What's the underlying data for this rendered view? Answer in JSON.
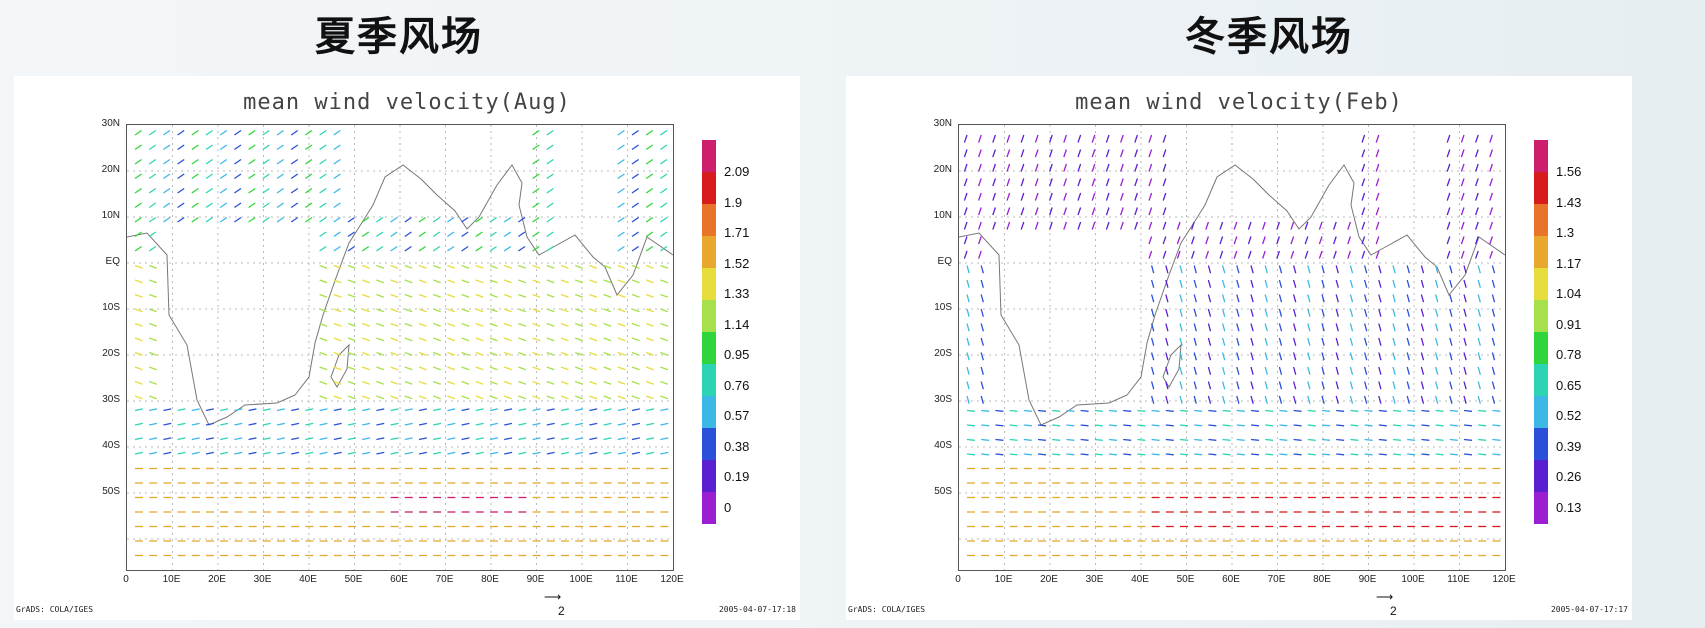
{
  "panels": [
    {
      "heading": "夏季风场",
      "figure_title": "mean wind velocity(Aug)",
      "footer_left": "GrADS: COLA/IGES",
      "footer_right": "2005-04-07-17:18",
      "reference_vector": "2",
      "lat_labels": [
        "30N",
        "20N",
        "10N",
        "EQ",
        "10S",
        "20S",
        "30S",
        "40S",
        "50S"
      ],
      "lon_labels": [
        "0",
        "10E",
        "20E",
        "30E",
        "40E",
        "50E",
        "60E",
        "70E",
        "80E",
        "90E",
        "100E",
        "110E",
        "120E"
      ],
      "colorbar": {
        "labels": [
          "2.09",
          "1.9",
          "1.71",
          "1.52",
          "1.33",
          "1.14",
          "0.95",
          "0.76",
          "0.57",
          "0.38",
          "0.19",
          "0"
        ],
        "colors": [
          "#cc1f6e",
          "#d81b1b",
          "#e8742a",
          "#e8a830",
          "#e6dd3c",
          "#a6e04a",
          "#2fd53a",
          "#2cd4b3",
          "#3cb8e6",
          "#2a4fd8",
          "#5a1fcf",
          "#9b1fd1"
        ]
      }
    },
    {
      "heading": "冬季风场",
      "figure_title": "mean wind velocity(Feb)",
      "footer_left": "GrADS: COLA/IGES",
      "footer_right": "2005-04-07-17:17",
      "reference_vector": "2",
      "lat_labels": [
        "30N",
        "20N",
        "10N",
        "EQ",
        "10S",
        "20S",
        "30S",
        "40S",
        "50S"
      ],
      "lon_labels": [
        "0",
        "10E",
        "20E",
        "30E",
        "40E",
        "50E",
        "60E",
        "70E",
        "80E",
        "90E",
        "100E",
        "110E",
        "120E"
      ],
      "colorbar": {
        "labels": [
          "1.56",
          "1.43",
          "1.3",
          "1.17",
          "1.04",
          "0.91",
          "0.78",
          "0.65",
          "0.52",
          "0.39",
          "0.26",
          "0.13"
        ],
        "colors": [
          "#cc1f6e",
          "#d81b1b",
          "#e8742a",
          "#e8a830",
          "#e6dd3c",
          "#a6e04a",
          "#2fd53a",
          "#2cd4b3",
          "#3cb8e6",
          "#2a4fd8",
          "#5a1fcf",
          "#9b1fd1"
        ]
      }
    }
  ]
}
